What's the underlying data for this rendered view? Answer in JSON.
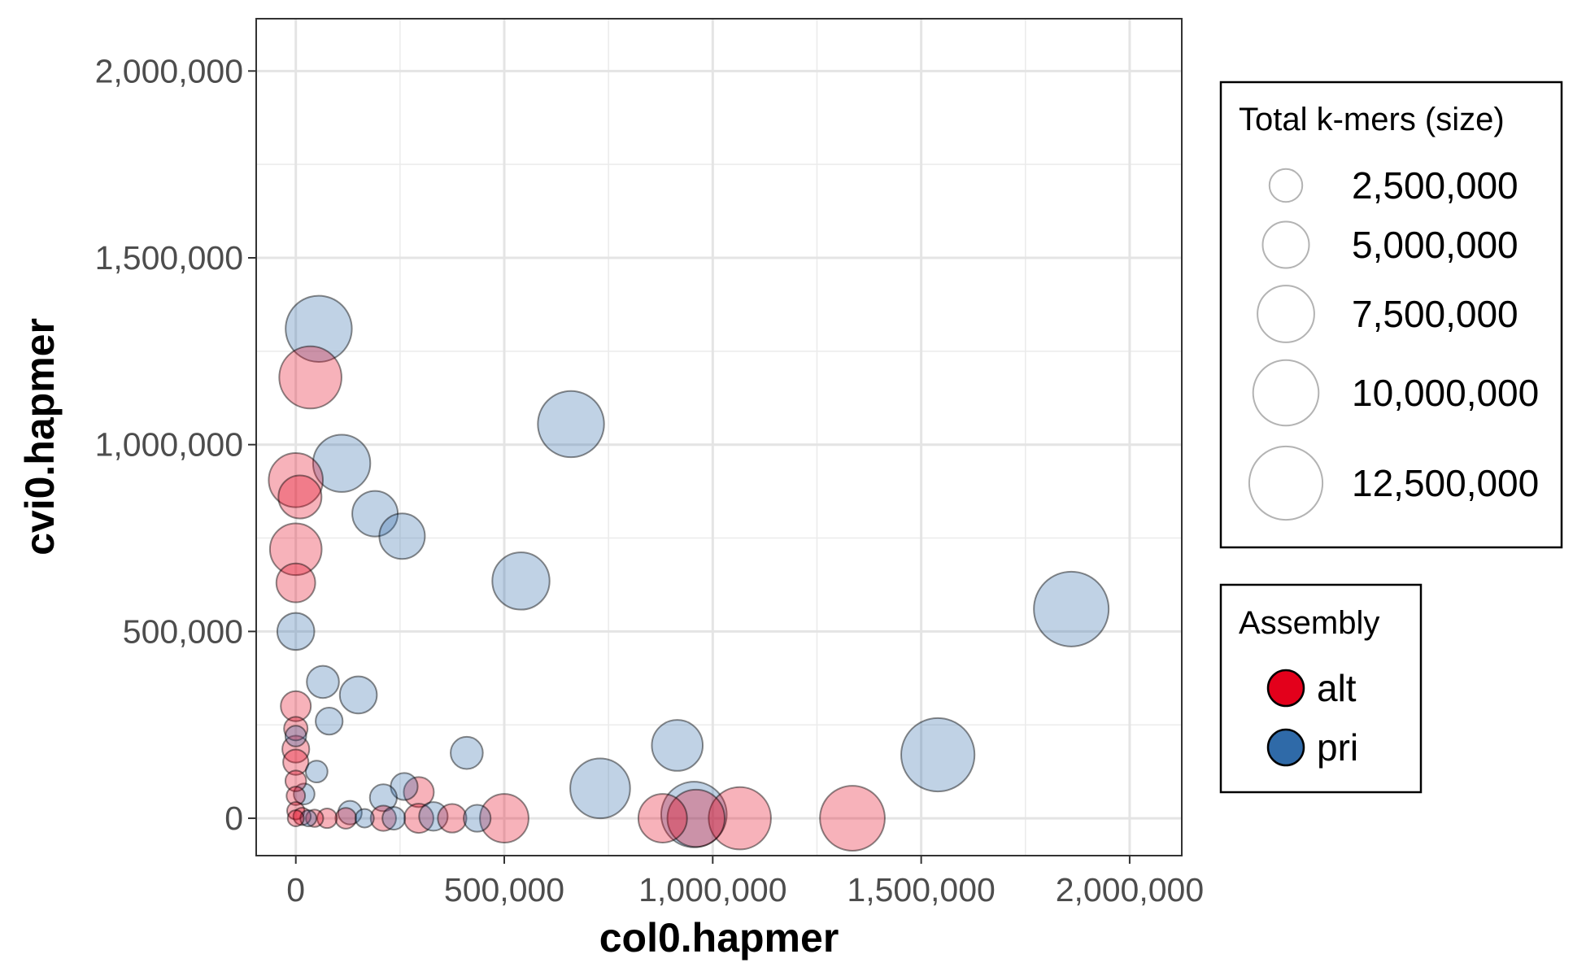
{
  "chart_data": {
    "type": "scatter",
    "xlabel": "col0.hapmer",
    "ylabel": "cvi0.hapmer",
    "xlim": [
      -95000,
      2125000
    ],
    "ylim": [
      -100000,
      2140000
    ],
    "x_ticks": [
      0,
      500000,
      1000000,
      1500000,
      2000000
    ],
    "x_tick_labels": [
      "0",
      "500,000",
      "1,000,000",
      "1,500,000",
      "2,000,000"
    ],
    "y_ticks": [
      0,
      500000,
      1000000,
      1500000,
      2000000
    ],
    "y_tick_labels": [
      "0",
      "500,000",
      "1,000,000",
      "1,500,000",
      "2,000,000"
    ],
    "grid": true,
    "size_legend": {
      "title": "Total k-mers (size)",
      "values": [
        2500000,
        5000000,
        7500000,
        10000000,
        12500000
      ],
      "labels": [
        "2,500,000",
        "5,000,000",
        "7,500,000",
        "10,000,000",
        "12,500,000"
      ]
    },
    "color_legend": {
      "title": "Assembly",
      "entries": [
        {
          "label": "alt",
          "color": "#e3001b"
        },
        {
          "label": "pri",
          "color": "#2f6aa8"
        }
      ]
    },
    "series": [
      {
        "name": "pri",
        "color": "#2f6aa8",
        "points": [
          {
            "x": 55000,
            "y": 1310000,
            "size": 10200000
          },
          {
            "x": 110000,
            "y": 950000,
            "size": 7600000
          },
          {
            "x": 660000,
            "y": 1055000,
            "size": 10200000
          },
          {
            "x": 190000,
            "y": 815000,
            "size": 4800000
          },
          {
            "x": 255000,
            "y": 755000,
            "size": 4800000
          },
          {
            "x": 540000,
            "y": 635000,
            "size": 7600000
          },
          {
            "x": 1860000,
            "y": 560000,
            "size": 13000000
          },
          {
            "x": 0,
            "y": 500000,
            "size": 3200000
          },
          {
            "x": 65000,
            "y": 365000,
            "size": 2400000
          },
          {
            "x": 150000,
            "y": 330000,
            "size": 3200000
          },
          {
            "x": 80000,
            "y": 260000,
            "size": 1700000
          },
          {
            "x": 410000,
            "y": 175000,
            "size": 2400000
          },
          {
            "x": 915000,
            "y": 195000,
            "size": 6000000
          },
          {
            "x": 1540000,
            "y": 170000,
            "size": 12500000
          },
          {
            "x": 730000,
            "y": 80000,
            "size": 8300000
          },
          {
            "x": 260000,
            "y": 85000,
            "size": 1700000
          },
          {
            "x": 210000,
            "y": 55000,
            "size": 1700000
          },
          {
            "x": 50000,
            "y": 125000,
            "size": 1100000
          },
          {
            "x": 20000,
            "y": 65000,
            "size": 1000000
          },
          {
            "x": 130000,
            "y": 15000,
            "size": 1300000
          },
          {
            "x": 330000,
            "y": 5000,
            "size": 1900000
          },
          {
            "x": 435000,
            "y": 0,
            "size": 1700000
          },
          {
            "x": 955000,
            "y": 10000,
            "size": 10000000
          },
          {
            "x": 165000,
            "y": 0,
            "size": 800000
          },
          {
            "x": 235000,
            "y": 0,
            "size": 1200000
          },
          {
            "x": 0,
            "y": 220000,
            "size": 1000000
          },
          {
            "x": 30000,
            "y": 0,
            "size": 600000
          }
        ]
      },
      {
        "name": "alt",
        "color": "#e3001b",
        "points": [
          {
            "x": 35000,
            "y": 1180000,
            "size": 9000000
          },
          {
            "x": 0,
            "y": 905000,
            "size": 6800000
          },
          {
            "x": 10000,
            "y": 860000,
            "size": 4300000
          },
          {
            "x": 0,
            "y": 720000,
            "size": 6200000
          },
          {
            "x": 0,
            "y": 630000,
            "size": 3500000
          },
          {
            "x": 0,
            "y": 300000,
            "size": 2100000
          },
          {
            "x": 0,
            "y": 240000,
            "size": 1300000
          },
          {
            "x": 0,
            "y": 185000,
            "size": 1700000
          },
          {
            "x": 0,
            "y": 150000,
            "size": 1500000
          },
          {
            "x": 0,
            "y": 100000,
            "size": 1000000
          },
          {
            "x": 0,
            "y": 60000,
            "size": 800000
          },
          {
            "x": 0,
            "y": 20000,
            "size": 700000
          },
          {
            "x": 0,
            "y": 0,
            "size": 600000
          },
          {
            "x": 295000,
            "y": 70000,
            "size": 2100000
          },
          {
            "x": 500000,
            "y": 0,
            "size": 5500000
          },
          {
            "x": 880000,
            "y": 0,
            "size": 5500000
          },
          {
            "x": 960000,
            "y": 0,
            "size": 7600000
          },
          {
            "x": 1065000,
            "y": 0,
            "size": 9000000
          },
          {
            "x": 1335000,
            "y": 0,
            "size": 9800000
          },
          {
            "x": 375000,
            "y": 0,
            "size": 1900000
          },
          {
            "x": 295000,
            "y": 0,
            "size": 2000000
          },
          {
            "x": 210000,
            "y": 0,
            "size": 1500000
          },
          {
            "x": 120000,
            "y": 0,
            "size": 1000000
          },
          {
            "x": 75000,
            "y": 0,
            "size": 900000
          },
          {
            "x": 45000,
            "y": 0,
            "size": 700000
          },
          {
            "x": 15000,
            "y": 5000,
            "size": 700000
          }
        ]
      }
    ]
  }
}
